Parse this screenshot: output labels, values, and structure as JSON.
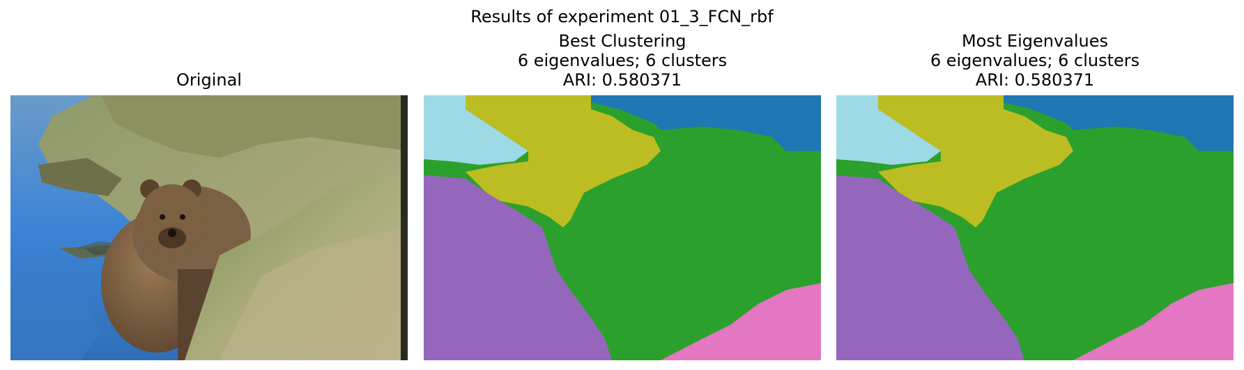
{
  "figure": {
    "title": "Results of experiment 01_3_FCN_rbf"
  },
  "panels": [
    {
      "title_lines": [
        "Original"
      ],
      "content": "photo: brown bear at grassy riverbank beside blue water"
    },
    {
      "title_lines": [
        "Best Clustering",
        "6 eigenvalues; 6 clusters",
        "ARI: 0.580371"
      ],
      "content": "segmentation map"
    },
    {
      "title_lines": [
        "Most Eigenvalues",
        "6 eigenvalues; 6 clusters",
        "ARI: 0.580371"
      ],
      "content": "segmentation map"
    }
  ],
  "cluster_colors": {
    "water": "#9edae5",
    "sky_top": "#1f77b4",
    "bank": "#bcbd22",
    "grass": "#2ca02c",
    "bear_water": "#9467bd",
    "lower_right": "#e377c2"
  }
}
